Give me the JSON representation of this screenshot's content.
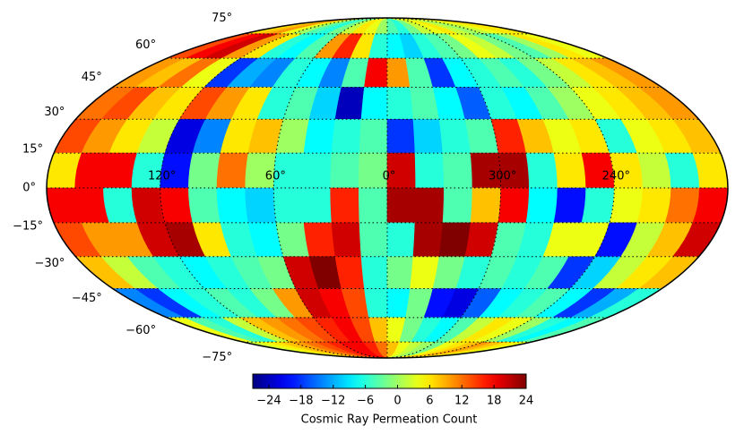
{
  "chart_data": {
    "type": "heatmap",
    "projection": "mollweide",
    "colormap": "jet",
    "clim": [
      -27,
      24
    ],
    "values": [
      [
        6,
        8,
        10,
        4,
        0,
        -4,
        -6,
        -2,
        2,
        6,
        4,
        0,
        -4,
        -6,
        -2,
        2,
        4,
        6,
        2,
        0,
        2,
        4,
        6,
        6
      ],
      [
        14,
        18,
        20,
        10,
        6,
        -6,
        -8,
        -4,
        10,
        16,
        6,
        -6,
        -8,
        -10,
        -6,
        -4,
        -2,
        4,
        2,
        -2,
        -4,
        0,
        6,
        4
      ],
      [
        10,
        8,
        12,
        4,
        -18,
        -12,
        -14,
        -6,
        -8,
        -14,
        -4,
        18,
        10,
        -4,
        -18,
        -8,
        -6,
        -4,
        -6,
        -2,
        2,
        6,
        8,
        10
      ],
      [
        12,
        14,
        8,
        6,
        14,
        10,
        6,
        -6,
        -4,
        -10,
        -24,
        -8,
        -6,
        -4,
        -8,
        -16,
        -6,
        -8,
        -4,
        0,
        4,
        6,
        8,
        10
      ],
      [
        14,
        10,
        6,
        2,
        -22,
        -14,
        6,
        8,
        0,
        -8,
        -6,
        -4,
        -18,
        -10,
        -6,
        -4,
        16,
        8,
        4,
        6,
        -6,
        4,
        6,
        8
      ],
      [
        6,
        18,
        18,
        -6,
        -20,
        -2,
        12,
        0,
        -6,
        -6,
        -4,
        -2,
        20,
        -6,
        -4,
        22,
        22,
        -6,
        6,
        18,
        6,
        2,
        -6,
        6
      ],
      [
        18,
        18,
        -6,
        20,
        18,
        -4,
        -8,
        -10,
        -6,
        -6,
        16,
        -4,
        22,
        22,
        -4,
        8,
        18,
        -8,
        -20,
        -6,
        4,
        6,
        12,
        18
      ],
      [
        14,
        10,
        10,
        20,
        22,
        6,
        -6,
        -8,
        -2,
        16,
        20,
        -4,
        -6,
        22,
        24,
        20,
        -4,
        -6,
        4,
        4,
        -20,
        2,
        8,
        20
      ],
      [
        8,
        2,
        -4,
        -6,
        -8,
        -6,
        -4,
        -2,
        20,
        24,
        16,
        -6,
        -2,
        4,
        -2,
        -6,
        -4,
        -6,
        -4,
        -18,
        -10,
        2,
        6,
        8
      ],
      [
        -14,
        -18,
        -8,
        -6,
        -4,
        -6,
        -2,
        10,
        20,
        18,
        14,
        -6,
        -8,
        -2,
        -20,
        -22,
        -16,
        -8,
        -6,
        -4,
        -8,
        -18,
        -12,
        -6
      ],
      [
        4,
        -4,
        -6,
        2,
        8,
        10,
        12,
        14,
        16,
        18,
        14,
        8,
        4,
        -2,
        -6,
        -8,
        -4,
        2,
        6,
        4,
        0,
        -6,
        -8,
        -4
      ],
      [
        2,
        4,
        6,
        8,
        10,
        12,
        14,
        16,
        18,
        18,
        16,
        12,
        8,
        4,
        2,
        0,
        -2,
        4,
        6,
        8,
        10,
        8,
        6,
        4
      ]
    ],
    "lat_ticks": [
      {
        "value": 75,
        "label": "75°"
      },
      {
        "value": 60,
        "label": "60°"
      },
      {
        "value": 45,
        "label": "45°"
      },
      {
        "value": 30,
        "label": "30°"
      },
      {
        "value": 15,
        "label": "15°"
      },
      {
        "value": 0,
        "label": "0°"
      },
      {
        "value": -15,
        "label": "−15°"
      },
      {
        "value": -30,
        "label": "−30°"
      },
      {
        "value": -45,
        "label": "−45°"
      },
      {
        "value": -60,
        "label": "−60°"
      },
      {
        "value": -75,
        "label": "−75°"
      }
    ],
    "lon_ticks": [
      {
        "value": 120,
        "label": "120°"
      },
      {
        "value": 60,
        "label": "60°"
      },
      {
        "value": 0,
        "label": "0°"
      },
      {
        "value": 300,
        "label": "300°"
      },
      {
        "value": 240,
        "label": "240°"
      }
    ],
    "colorbar": {
      "label": "Cosmic Ray Permeation Count",
      "ticks": [
        {
          "value": -24,
          "label": "−24"
        },
        {
          "value": -18,
          "label": "−18"
        },
        {
          "value": -12,
          "label": "−12"
        },
        {
          "value": -6,
          "label": "−6"
        },
        0,
        6,
        12,
        18,
        24
      ]
    }
  }
}
